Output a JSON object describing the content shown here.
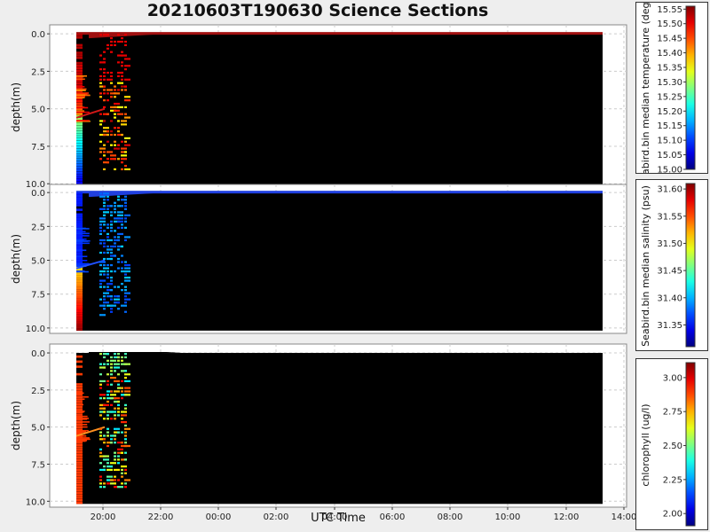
{
  "title": "20210603T190630 Science Sections",
  "x_axis": {
    "label": "UTC Time",
    "tick_labels": [
      "20:00",
      "22:00",
      "00:00",
      "02:00",
      "04:00",
      "06:00",
      "08:00",
      "10:00",
      "12:00",
      "14:00"
    ]
  },
  "colorbars": [
    {
      "label": "seabird.bin median temperature (degC)",
      "ticks": [
        "15.00",
        "15.05",
        "15.10",
        "15.15",
        "15.20",
        "15.25",
        "15.30",
        "15.35",
        "15.40",
        "15.45",
        "15.50",
        "15.55"
      ],
      "range": [
        15.0,
        15.56
      ]
    },
    {
      "label": "Seabird.bin median salinity (psu)",
      "ticks": [
        "31.35",
        "31.40",
        "31.45",
        "31.50",
        "31.55",
        "31.60"
      ],
      "range": [
        31.31,
        31.61
      ]
    },
    {
      "label": "chlorophyll (ug/l)",
      "ticks": [
        "2.00",
        "2.25",
        "2.50",
        "2.75",
        "3.00"
      ],
      "range": [
        1.91,
        3.11
      ]
    }
  ],
  "chart_data": [
    {
      "type": "heatmap",
      "ylabel": "depth(m)",
      "y_tick_labels": [
        "0.0",
        "2.5",
        "5.0",
        "7.5",
        "10.0"
      ],
      "ylim": [
        10.4,
        -0.6
      ],
      "x_range_hours": [
        18.5,
        38.0
      ],
      "y_inverted": true,
      "colorscale": "jet",
      "value_label": "seabird.bin median temperature (degC)"
    },
    {
      "type": "heatmap",
      "ylabel": "depth(m)",
      "y_tick_labels": [
        "0.0",
        "2.5",
        "5.0",
        "7.5",
        "10.0"
      ],
      "ylim": [
        10.4,
        -0.6
      ],
      "x_range_hours": [
        18.5,
        38.0
      ],
      "y_inverted": true,
      "colorscale": "jet",
      "value_label": "Seabird.bin median salinity (psu)"
    },
    {
      "type": "heatmap",
      "ylabel": "depth(m)",
      "y_tick_labels": [
        "0.0",
        "2.5",
        "5.0",
        "7.5",
        "10.0"
      ],
      "ylim": [
        10.4,
        -0.6
      ],
      "x_range_hours": [
        18.5,
        38.0
      ],
      "y_inverted": true,
      "colorscale": "jet",
      "value_label": "chlorophyll (ug/l)"
    }
  ]
}
